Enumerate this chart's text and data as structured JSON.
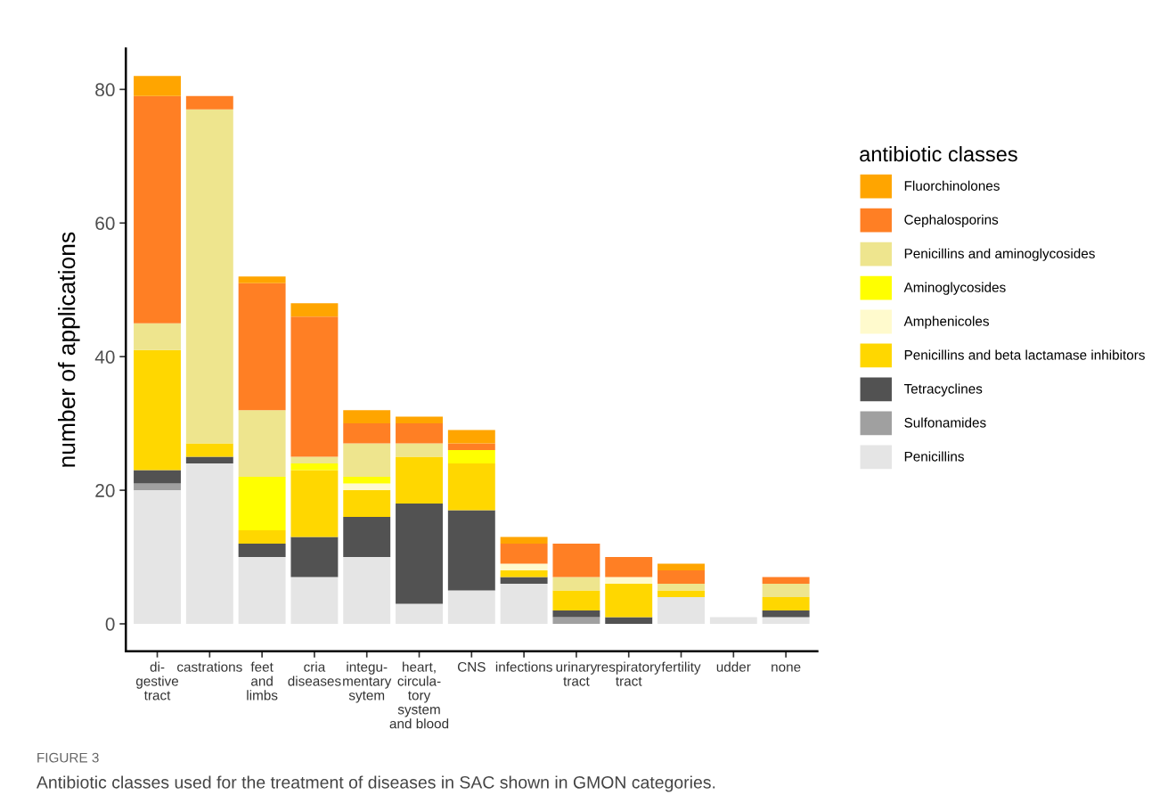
{
  "chart_data": {
    "type": "bar",
    "stacked": true,
    "ylabel": "number of applications",
    "legend_title": "antibiotic classes",
    "legend": "right",
    "grid": false,
    "categories": [
      "di-\ngestive\ntract",
      "castrations",
      "feet\nand\nlimbs",
      "cria\ndiseases",
      "integu-\nmentary\nsytem",
      "heart,\ncircula-\ntory\nsystem\nand blood",
      "CNS",
      "infections",
      "urinary\ntract",
      "respiratory\ntract",
      "fertility",
      "udder",
      "none"
    ],
    "series": [
      {
        "name": "Penicillins",
        "color": "#e5e5e5",
        "values": [
          20,
          24,
          10,
          7,
          10,
          3,
          5,
          6,
          0,
          0,
          4,
          1,
          1
        ]
      },
      {
        "name": "Sulfonamides",
        "color": "#a0a0a0",
        "values": [
          1,
          0,
          0,
          0,
          0,
          0,
          0,
          0,
          1,
          0,
          0,
          0,
          0
        ]
      },
      {
        "name": "Tetracyclines",
        "color": "#525252",
        "values": [
          2,
          1,
          2,
          6,
          6,
          15,
          12,
          1,
          1,
          1,
          0,
          0,
          1
        ]
      },
      {
        "name": "Penicillins and beta lactamase inhibitors",
        "color": "#ffd700",
        "values": [
          18,
          2,
          2,
          10,
          4,
          7,
          7,
          1,
          3,
          5,
          1,
          0,
          2
        ]
      },
      {
        "name": "Amphenicoles",
        "color": "#fffacd",
        "values": [
          0,
          0,
          0,
          0,
          1,
          0,
          0,
          1,
          0,
          1,
          0,
          0,
          0
        ]
      },
      {
        "name": "Aminoglycosides",
        "color": "#ffff00",
        "values": [
          0,
          0,
          8,
          1,
          1,
          0,
          2,
          0,
          0,
          0,
          0,
          0,
          0
        ]
      },
      {
        "name": "Penicillins and aminoglycosides",
        "color": "#eee58e",
        "values": [
          4,
          50,
          10,
          1,
          5,
          2,
          0,
          0,
          2,
          0,
          1,
          0,
          2
        ]
      },
      {
        "name": "Cephalosporins",
        "color": "#ff7f24",
        "values": [
          34,
          2,
          19,
          21,
          3,
          3,
          1,
          3,
          5,
          3,
          2,
          0,
          1
        ]
      },
      {
        "name": "Fluorchinolones",
        "color": "#ffa500",
        "values": [
          3,
          0,
          1,
          2,
          2,
          1,
          2,
          1,
          0,
          0,
          1,
          0,
          0
        ]
      }
    ],
    "ylim": [
      -4.1,
      86.1
    ],
    "yticks": [
      0,
      20,
      40,
      60,
      80
    ],
    "annotations": [
      "FIGURE 3",
      "Antibiotic classes used for the treatment of diseases in SAC shown in GMON categories."
    ]
  }
}
